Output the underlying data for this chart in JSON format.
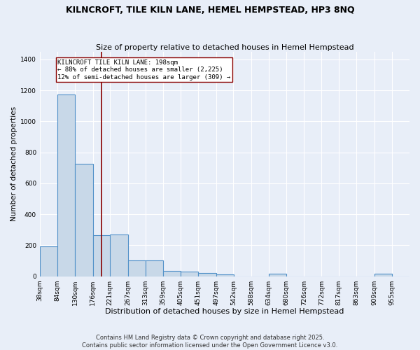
{
  "title": "KILNCROFT, TILE KILN LANE, HEMEL HEMPSTEAD, HP3 8NQ",
  "subtitle": "Size of property relative to detached houses in Hemel Hempstead",
  "xlabel": "Distribution of detached houses by size in Hemel Hempstead",
  "ylabel": "Number of detached properties",
  "bin_edges": [
    38,
    84,
    130,
    176,
    221,
    267,
    313,
    359,
    405,
    451,
    497,
    542,
    588,
    634,
    680,
    726,
    772,
    817,
    863,
    909,
    955
  ],
  "bar_heights": [
    192,
    1175,
    725,
    265,
    268,
    102,
    101,
    33,
    28,
    22,
    10,
    0,
    0,
    15,
    0,
    0,
    0,
    0,
    0,
    17,
    0
  ],
  "bar_color": "#c8d8e8",
  "bar_edge_color": "#5090c8",
  "bar_linewidth": 0.8,
  "vline_x": 198,
  "vline_color": "#880000",
  "vline_linewidth": 1.2,
  "annotation_text": "KILNCROFT TILE KILN LANE: 198sqm\n← 88% of detached houses are smaller (2,225)\n12% of semi-detached houses are larger (309) →",
  "annotation_fontsize": 6.5,
  "annotation_box_color": "white",
  "annotation_box_edge_color": "#880000",
  "ylim": [
    0,
    1450
  ],
  "xlim_left": 38,
  "xlim_right": 1001,
  "background_color": "#e8eef8",
  "title_fontsize": 9,
  "subtitle_fontsize": 8,
  "xlabel_fontsize": 8,
  "ylabel_fontsize": 7.5,
  "tick_fontsize": 6.5,
  "footer_line1": "Contains HM Land Registry data © Crown copyright and database right 2025.",
  "footer_line2": "Contains public sector information licensed under the Open Government Licence v3.0.",
  "footer_fontsize": 6
}
